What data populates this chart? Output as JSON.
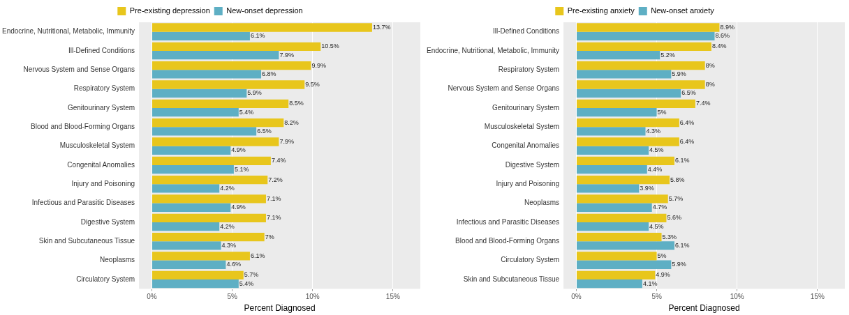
{
  "chart_data": [
    {
      "type": "bar",
      "orientation": "horizontal",
      "xlabel": "Percent Diagnosed",
      "legend": "top",
      "grid": "x",
      "categories": [
        "Endocrine, Nutritional, Metabolic, Immunity",
        "Ill-Defined Conditions",
        "Nervous System and Sense Organs",
        "Respiratory System",
        "Genitourinary System",
        "Blood and Blood-Forming Organs",
        "Musculoskeletal System",
        "Congenital Anomalies",
        "Injury and Poisoning",
        "Infectious and Parasitic Diseases",
        "Digestive System",
        "Skin and Subcutaneous Tissue",
        "Neoplasms",
        "Circulatory System"
      ],
      "series": [
        {
          "name": "Pre-existing depression",
          "color": "#e8c61c",
          "values": [
            13.7,
            10.5,
            9.9,
            9.5,
            8.5,
            8.2,
            7.9,
            7.4,
            7.2,
            7.1,
            7.1,
            7,
            6.1,
            5.7
          ],
          "value_labels": [
            "13.7%",
            "10.5%",
            "9.9%",
            "9.5%",
            "8.5%",
            "8.2%",
            "7.9%",
            "7.4%",
            "7.2%",
            "7.1%",
            "7.1%",
            "7%",
            "6.1%",
            "5.7%"
          ]
        },
        {
          "name": "New-onset depression",
          "color": "#5eafc4",
          "values": [
            6.1,
            7.9,
            6.8,
            5.9,
            5.4,
            6.5,
            4.9,
            5.1,
            4.2,
            4.9,
            4.2,
            4.3,
            4.6,
            5.4
          ],
          "value_labels": [
            "6.1%",
            "7.9%",
            "6.8%",
            "5.9%",
            "5.4%",
            "6.5%",
            "4.9%",
            "5.1%",
            "4.2%",
            "4.9%",
            "4.2%",
            "4.3%",
            "4.6%",
            "5.4%"
          ]
        }
      ],
      "xlim": [
        -0.8,
        16.7
      ],
      "xticks": [
        {
          "value": 0,
          "label": "0%"
        },
        {
          "value": 5,
          "label": "5%"
        },
        {
          "value": 10,
          "label": "10%"
        },
        {
          "value": 15,
          "label": "15%"
        }
      ]
    },
    {
      "type": "bar",
      "orientation": "horizontal",
      "xlabel": "Percent Diagnosed",
      "legend": "top",
      "grid": "x",
      "categories": [
        "Ill-Defined Conditions",
        "Endocrine, Nutritional, Metabolic, Immunity",
        "Respiratory System",
        "Nervous System and Sense Organs",
        "Genitourinary System",
        "Musculoskeletal System",
        "Congenital Anomalies",
        "Digestive System",
        "Injury and Poisoning",
        "Neoplasms",
        "Infectious and Parasitic Diseases",
        "Blood and Blood-Forming Organs",
        "Circulatory System",
        "Skin and Subcutaneous Tissue"
      ],
      "series": [
        {
          "name": "Pre-existing anxiety",
          "color": "#e8c61c",
          "values": [
            8.9,
            8.4,
            8,
            8,
            7.4,
            6.4,
            6.4,
            6.1,
            5.8,
            5.7,
            5.6,
            5.3,
            5,
            4.9
          ],
          "value_labels": [
            "8.9%",
            "8.4%",
            "8%",
            "8%",
            "7.4%",
            "6.4%",
            "6.4%",
            "6.1%",
            "5.8%",
            "5.7%",
            "5.6%",
            "5.3%",
            "5%",
            "4.9%"
          ]
        },
        {
          "name": "New-onset anxiety",
          "color": "#5eafc4",
          "values": [
            8.6,
            5.2,
            5.9,
            6.5,
            5,
            4.3,
            4.5,
            4.4,
            3.9,
            4.7,
            4.5,
            6.1,
            5.9,
            4.1
          ],
          "value_labels": [
            "8.6%",
            "5.2%",
            "5.9%",
            "6.5%",
            "5%",
            "4.3%",
            "4.5%",
            "4.4%",
            "3.9%",
            "4.7%",
            "4.5%",
            "6.1%",
            "5.9%",
            "4.1%"
          ]
        }
      ],
      "xlim": [
        -0.8,
        16.7
      ],
      "xticks": [
        {
          "value": 0,
          "label": "0%"
        },
        {
          "value": 5,
          "label": "5%"
        },
        {
          "value": 10,
          "label": "10%"
        },
        {
          "value": 15,
          "label": "15%"
        }
      ]
    }
  ]
}
